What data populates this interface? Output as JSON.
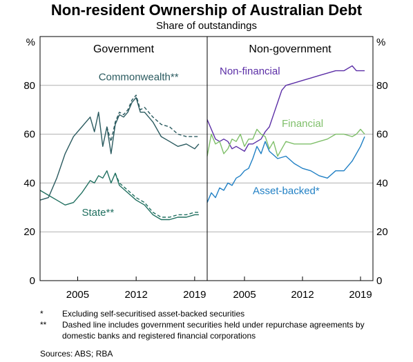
{
  "title": "Non-resident Ownership of Australian Debt",
  "subtitle": "Share of outstandings",
  "notes": [
    {
      "mark": "*",
      "text": "Excluding self-securitised asset-backed securities"
    },
    {
      "mark": "**",
      "text": "Dashed line includes government securities held under repurchase agreements by domestic banks and registered financial corporations"
    }
  ],
  "source": "Sources:  ABS; RBA",
  "colors": {
    "commonwealth": "#2a5a5f",
    "state": "#1f6f5f",
    "nonfinancial": "#5b2ea6",
    "financial": "#7fbf6a",
    "assetbacked": "#1f7fc4",
    "grid": "#b0b0b0"
  },
  "chart_data": [
    {
      "type": "line",
      "panel_title": "Government",
      "y_unit_left": "%",
      "y_unit_right": "%",
      "ylim": [
        0,
        100
      ],
      "yticks": [
        0,
        20,
        40,
        60,
        80
      ],
      "xlim": [
        2000.5,
        2020.5
      ],
      "xticks": [
        2005,
        2012,
        2019
      ],
      "grid": true,
      "series": [
        {
          "name": "Commonwealth**",
          "key": "commonwealth",
          "style": "solid",
          "x": [
            2000.5,
            2001.5,
            2002.5,
            2003.5,
            2004.5,
            2005.5,
            2006.5,
            2007.0,
            2007.5,
            2008.0,
            2008.5,
            2009.0,
            2009.5,
            2010.0,
            2010.5,
            2011.0,
            2011.5,
            2012.0,
            2012.5,
            2013.0,
            2014.0,
            2015.0,
            2016.0,
            2017.0,
            2018.0,
            2019.0,
            2019.5
          ],
          "y": [
            33,
            34,
            42,
            52,
            59,
            63,
            67,
            61,
            69,
            55,
            63,
            52,
            64,
            68,
            67,
            69,
            73,
            75,
            69,
            69,
            65,
            59,
            57,
            55,
            56,
            54,
            56
          ]
        },
        {
          "name": "Commonwealth**",
          "key": "commonwealth",
          "style": "dashed",
          "x": [
            2008.5,
            2009.0,
            2009.5,
            2010.0,
            2010.5,
            2011.0,
            2011.5,
            2012.0,
            2012.5,
            2013.0,
            2014.0,
            2015.0,
            2016.0,
            2017.0,
            2018.0,
            2019.0,
            2019.5
          ],
          "y": [
            63,
            57,
            65,
            69,
            68,
            70,
            74,
            76,
            70,
            71,
            67,
            64,
            63,
            60,
            59,
            59,
            59
          ]
        },
        {
          "name": "State**",
          "key": "state",
          "style": "solid",
          "x": [
            2000.5,
            2001.5,
            2002.5,
            2003.5,
            2004.5,
            2005.5,
            2006.5,
            2007.0,
            2007.5,
            2008.0,
            2008.5,
            2009.0,
            2009.5,
            2010.0,
            2011.0,
            2012.0,
            2013.0,
            2014.0,
            2015.0,
            2016.0,
            2017.0,
            2018.0,
            2019.0,
            2019.5
          ],
          "y": [
            37,
            35,
            33,
            31,
            32,
            36,
            41,
            40,
            43,
            42,
            45,
            40,
            44,
            39,
            36,
            33,
            31,
            27,
            25,
            25,
            26,
            26,
            27,
            27
          ]
        },
        {
          "name": "State**",
          "key": "state",
          "style": "dashed",
          "x": [
            2009.5,
            2010.0,
            2011.0,
            2012.0,
            2013.0,
            2014.0,
            2015.0,
            2016.0,
            2017.0,
            2018.0,
            2019.0,
            2019.5
          ],
          "y": [
            44,
            40,
            37,
            34,
            32,
            28,
            26,
            26,
            27,
            27,
            28,
            28
          ]
        }
      ]
    },
    {
      "type": "line",
      "panel_title": "Non-government",
      "y_unit_right": "%",
      "ylim": [
        0,
        100
      ],
      "yticks": [
        0,
        20,
        40,
        60,
        80
      ],
      "xlim": [
        2000.5,
        2020.5
      ],
      "xticks": [
        2005,
        2012,
        2019
      ],
      "grid": true,
      "series": [
        {
          "name": "Non-financial",
          "key": "nonfinancial",
          "style": "solid",
          "x": [
            2000.5,
            2001.0,
            2001.5,
            2002.0,
            2002.5,
            2003.0,
            2003.5,
            2004.0,
            2004.5,
            2005.0,
            2005.5,
            2006.0,
            2006.5,
            2007.0,
            2007.5,
            2008.0,
            2008.5,
            2009.0,
            2009.5,
            2010.0,
            2011.0,
            2012.0,
            2013.0,
            2014.0,
            2015.0,
            2016.0,
            2017.0,
            2018.0,
            2018.5,
            2019.0,
            2019.5
          ],
          "y": [
            66,
            62,
            58,
            57,
            58,
            57,
            54,
            55,
            54,
            53,
            56,
            56,
            57,
            58,
            61,
            63,
            68,
            73,
            78,
            80,
            81,
            82,
            83,
            84,
            85,
            86,
            86,
            88,
            86,
            86,
            86
          ]
        },
        {
          "name": "Financial",
          "key": "financial",
          "style": "solid",
          "x": [
            2000.5,
            2001.0,
            2001.5,
            2002.0,
            2002.5,
            2003.0,
            2003.5,
            2004.0,
            2004.5,
            2005.0,
            2005.5,
            2006.0,
            2006.5,
            2007.0,
            2007.5,
            2008.0,
            2008.5,
            2009.0,
            2010.0,
            2011.0,
            2012.0,
            2013.0,
            2014.0,
            2015.0,
            2016.0,
            2017.0,
            2018.0,
            2018.5,
            2019.0,
            2019.5
          ],
          "y": [
            51,
            60,
            56,
            57,
            52,
            54,
            58,
            57,
            60,
            55,
            58,
            58,
            62,
            60,
            59,
            54,
            57,
            51,
            57,
            56,
            56,
            56,
            57,
            58,
            60,
            60,
            59,
            60,
            62,
            60
          ]
        },
        {
          "name": "Asset-backed*",
          "key": "assetbacked",
          "style": "solid",
          "x": [
            2000.5,
            2001.0,
            2001.5,
            2002.0,
            2002.5,
            2003.0,
            2003.5,
            2004.0,
            2004.5,
            2005.0,
            2005.5,
            2006.0,
            2006.5,
            2007.0,
            2007.5,
            2008.0,
            2009.0,
            2010.0,
            2011.0,
            2012.0,
            2013.0,
            2014.0,
            2015.0,
            2016.0,
            2017.0,
            2018.0,
            2019.0,
            2019.5
          ],
          "y": [
            32,
            36,
            34,
            38,
            37,
            40,
            39,
            42,
            43,
            45,
            46,
            50,
            55,
            52,
            57,
            53,
            50,
            51,
            48,
            46,
            45,
            43,
            42,
            45,
            45,
            49,
            55,
            59
          ]
        }
      ]
    }
  ],
  "labels": [
    {
      "text": "Commonwealth**",
      "key": "commonwealth",
      "panel": 0,
      "x": 2007.5,
      "y": 82
    },
    {
      "text": "State**",
      "key": "state",
      "panel": 0,
      "x": 2005.5,
      "y": 26.5
    },
    {
      "text": "Non-financial",
      "key": "nonfinancial",
      "panel": 1,
      "x": 2002.0,
      "y": 84.5
    },
    {
      "text": "Financial",
      "key": "financial",
      "panel": 1,
      "x": 2009.5,
      "y": 63
    },
    {
      "text": "Asset-backed*",
      "key": "assetbacked",
      "panel": 1,
      "x": 2006.0,
      "y": 35.5
    }
  ]
}
